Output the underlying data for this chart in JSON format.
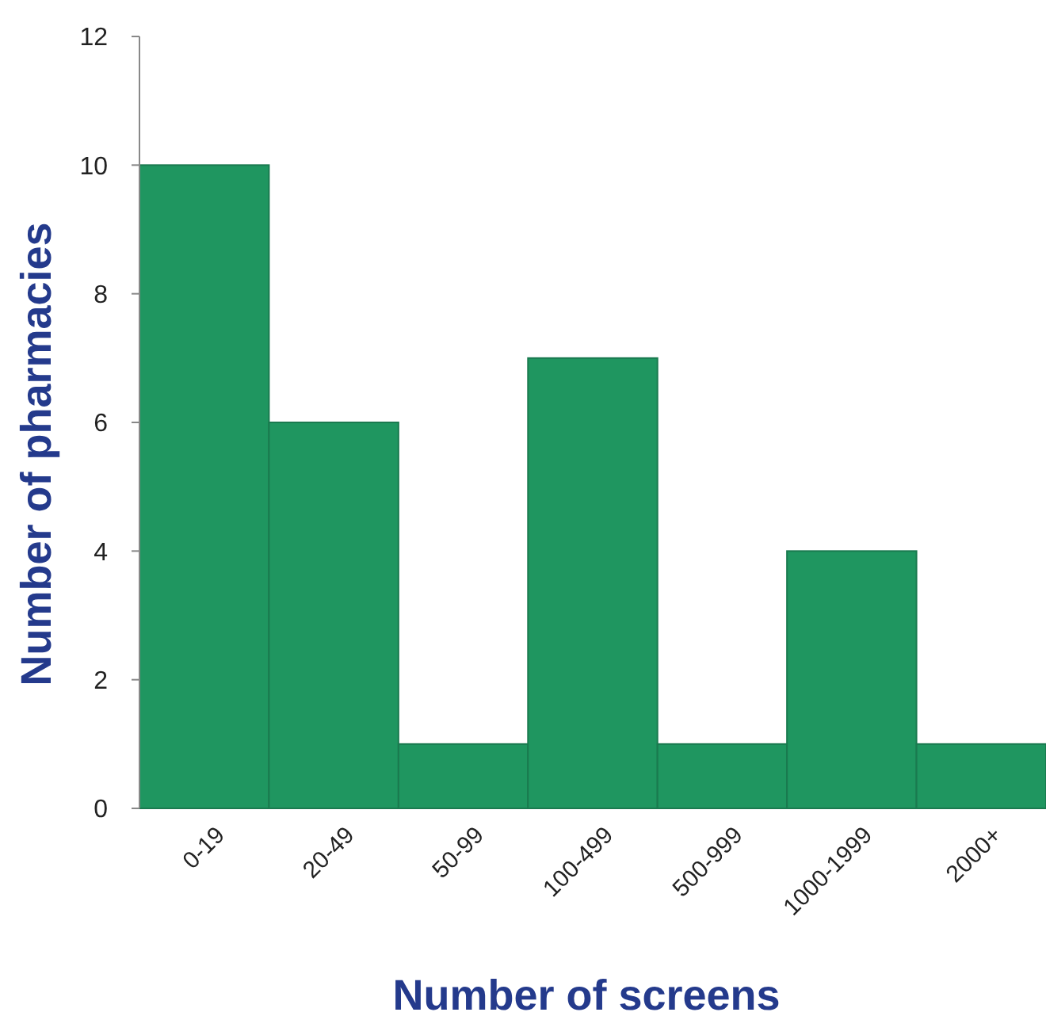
{
  "chart_data": {
    "type": "bar",
    "xlabel": "Number of screens",
    "ylabel": "Number of pharmacies",
    "categories": [
      "0-19",
      "20-49",
      "50-99",
      "100-499",
      "500-999",
      "1000-1999",
      "2000+"
    ],
    "values": [
      10,
      6,
      1,
      7,
      1,
      4,
      1
    ],
    "color": "#1f9660",
    "ylim": [
      0,
      12
    ],
    "yticks": [
      0,
      2,
      4,
      6,
      8,
      10,
      12
    ]
  }
}
